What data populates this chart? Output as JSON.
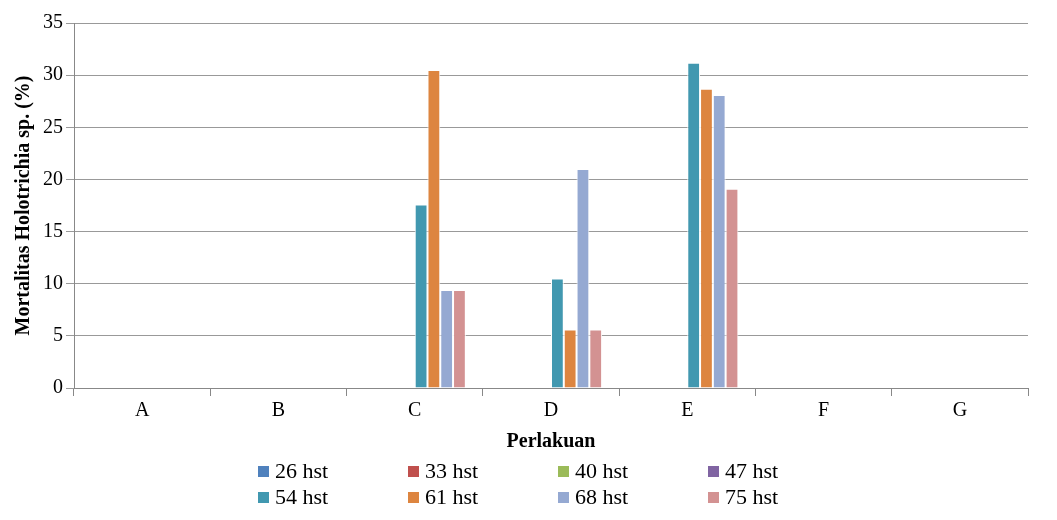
{
  "chart_data": {
    "type": "bar",
    "xlabel": "Perlakuan",
    "ylabel": "Mortalitas Holotrichia sp. (%)",
    "categories": [
      "A",
      "B",
      "C",
      "D",
      "E",
      "F",
      "G"
    ],
    "series": [
      {
        "name": "26 hst",
        "color": "#4f81bd",
        "values": [
          0,
          0,
          0,
          0,
          0,
          0,
          0
        ]
      },
      {
        "name": "33 hst",
        "color": "#c0504d",
        "values": [
          0,
          0,
          0,
          0,
          0,
          0,
          0
        ]
      },
      {
        "name": "40 hst",
        "color": "#9bbb59",
        "values": [
          0,
          0,
          0,
          0,
          0,
          0,
          0
        ]
      },
      {
        "name": "47 hst",
        "color": "#8064a2",
        "values": [
          0,
          0,
          0,
          0,
          0,
          0,
          0
        ]
      },
      {
        "name": "54 hst",
        "color": "#4198b0",
        "values": [
          0,
          0,
          17.6,
          10.5,
          31.2,
          0,
          0
        ]
      },
      {
        "name": "61 hst",
        "color": "#dd8540",
        "values": [
          0,
          0,
          30.5,
          5.6,
          28.7,
          0,
          0
        ]
      },
      {
        "name": "68 hst",
        "color": "#95a9d2",
        "values": [
          0,
          0,
          9.4,
          21.0,
          28.1,
          0,
          0
        ]
      },
      {
        "name": "75 hst",
        "color": "#d39292",
        "values": [
          0,
          0,
          9.4,
          5.6,
          19.1,
          0,
          0
        ]
      }
    ],
    "ylim": [
      0,
      35
    ],
    "yticks": [
      0,
      5,
      10,
      15,
      20,
      25,
      30,
      35
    ],
    "grid": "y",
    "legend": "bottom"
  }
}
